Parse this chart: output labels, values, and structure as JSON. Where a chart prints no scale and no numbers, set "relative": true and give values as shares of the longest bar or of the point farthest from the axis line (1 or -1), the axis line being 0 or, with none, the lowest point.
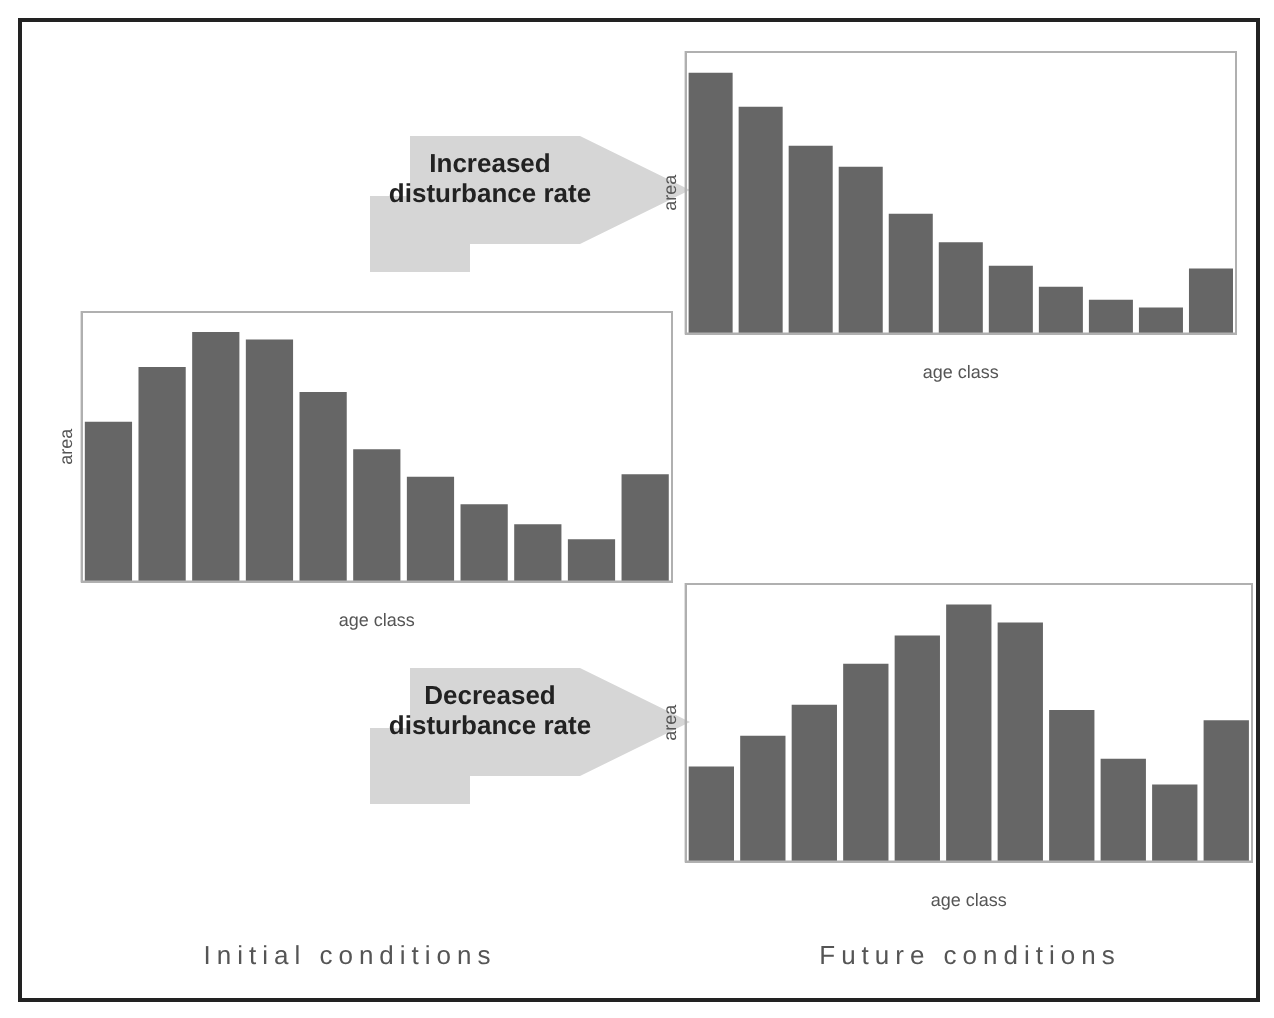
{
  "chart_data": [
    {
      "type": "bar",
      "xlabel": "age class",
      "ylabel": "area",
      "relative": true,
      "color": "#666666",
      "grid": false,
      "legend": false,
      "categories": [
        null,
        null,
        null,
        null,
        null,
        null,
        null,
        null,
        null,
        null,
        null
      ],
      "values": [
        1,
        0.87,
        0.72,
        0.64,
        0.46,
        0.35,
        0.26,
        0.18,
        0.13,
        0.1,
        0.25
      ],
      "annotations": [
        "Increased disturbance rate"
      ]
    },
    {
      "type": "bar",
      "xlabel": "age class",
      "ylabel": "area",
      "relative": true,
      "color": "#666666",
      "grid": false,
      "legend": false,
      "categories": [
        null,
        null,
        null,
        null,
        null,
        null,
        null,
        null,
        null,
        null,
        null
      ],
      "values": [
        0.64,
        0.86,
        1,
        0.97,
        0.76,
        0.53,
        0.42,
        0.31,
        0.23,
        0.17,
        0.43
      ],
      "annotations": [
        "Initial conditions"
      ]
    },
    {
      "type": "bar",
      "xlabel": "age class",
      "ylabel": "area",
      "relative": true,
      "color": "#666666",
      "grid": false,
      "legend": false,
      "categories": [
        null,
        null,
        null,
        null,
        null,
        null,
        null,
        null,
        null,
        null,
        null
      ],
      "values": [
        0.37,
        0.49,
        0.61,
        0.77,
        0.88,
        1,
        0.93,
        0.59,
        0.4,
        0.3,
        0.55
      ],
      "annotations": [
        "Decreased disturbance rate",
        "Future conditions"
      ]
    }
  ]
}
